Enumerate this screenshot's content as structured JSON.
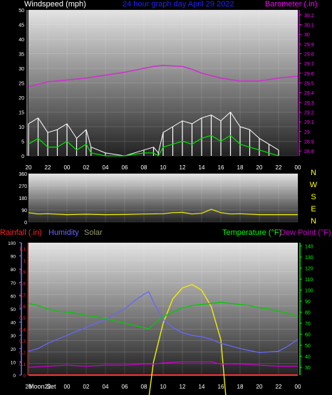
{
  "header": {
    "wind_label": "Windspeed (mph)",
    "date_label": "24 hour graph day   April 29 2022",
    "baro_label": "Barometer (.in)"
  },
  "middle": {
    "dir_letters": [
      "N",
      "W",
      "S",
      "E",
      "N"
    ]
  },
  "bottom": {
    "rain_label": "Rainfall (.in)",
    "humidity_label": "Humidity",
    "solar_label": "Solar",
    "temp_label": "Temperature (°F)",
    "dew_label": "Dew Point (°F)",
    "moon_label": "Moon Set"
  },
  "colors": {
    "wind_label": "#ffffff",
    "date_label": "#2222ff",
    "baro_label": "#ff00ff",
    "baro_line": "#cc33cc",
    "wind_gust": "#ffffff",
    "wind_avg": "#00dd00",
    "direction": "#eeee00",
    "rain": "#ff3333",
    "humidity": "#6666ff",
    "solar": "#eeee00",
    "temp": "#00cc00",
    "dew": "#cc00cc",
    "axis_rain": "#ff2222",
    "axis_hum": "#8080ff",
    "axis_temp": "#00ff00",
    "dir_letters": "#ffff00"
  },
  "chart_data": [
    {
      "type": "line",
      "x_ticks": [
        "20",
        "22",
        "00",
        "02",
        "04",
        "06",
        "08",
        "10",
        "12",
        "14",
        "16",
        "18",
        "20",
        "22",
        "00"
      ],
      "wind_axis": {
        "ticks": [
          "0",
          "5",
          "10",
          "15",
          "20",
          "25",
          "30",
          "35",
          "40",
          "45",
          "50"
        ],
        "ylim": [
          0,
          50
        ]
      },
      "baro_axis": {
        "ticks": [
          "28.8",
          "28.9",
          "29",
          "29.1",
          "29.2",
          "29.3",
          "29.4",
          "29.5",
          "29.6",
          "29.7",
          "29.8",
          "29.9",
          "30",
          "30.1",
          "30.2"
        ],
        "ylim": [
          28.75,
          30.25
        ]
      },
      "series": [
        {
          "key": "barometer",
          "x": [
            0,
            2,
            4,
            6,
            8,
            10,
            12,
            13,
            14,
            16,
            17,
            18,
            20,
            22,
            24,
            26,
            28
          ],
          "values": [
            29.46,
            29.51,
            29.53,
            29.55,
            29.58,
            29.61,
            29.65,
            29.67,
            29.68,
            29.67,
            29.64,
            29.6,
            29.55,
            29.52,
            29.52,
            29.55,
            29.57
          ]
        },
        {
          "key": "wind_gust",
          "x": [
            0,
            1,
            2,
            3,
            4,
            5,
            6,
            6.5,
            8,
            10,
            12,
            13,
            13.5,
            14,
            15,
            16,
            17,
            18,
            19,
            20,
            21,
            22,
            23,
            24,
            25,
            26
          ],
          "values": [
            11,
            13,
            8,
            9,
            11,
            6,
            9,
            3,
            1,
            0,
            2,
            3,
            1,
            8,
            10,
            12,
            11,
            13,
            14,
            12,
            15,
            10,
            9,
            6,
            4,
            2
          ]
        },
        {
          "key": "wind_avg",
          "x": [
            0,
            1,
            2,
            3,
            4,
            5,
            6,
            6.5,
            8,
            10,
            12,
            13,
            13.5,
            14,
            15,
            16,
            17,
            18,
            19,
            20,
            21,
            22,
            23,
            24,
            25,
            26
          ],
          "values": [
            4,
            6,
            3,
            3,
            5,
            2,
            4,
            1,
            0,
            0,
            1,
            1,
            0,
            3,
            4,
            5,
            4,
            6,
            7,
            5,
            7,
            4,
            3,
            2,
            1,
            0
          ]
        }
      ]
    },
    {
      "type": "line",
      "x_ticks": [],
      "dir_axis": {
        "ticks": [
          "0",
          "90",
          "180",
          "270",
          "360"
        ],
        "ylim": [
          0,
          360
        ]
      },
      "series": [
        {
          "key": "direction",
          "x": [
            0,
            1,
            2,
            4,
            6,
            8,
            10,
            12,
            14,
            15,
            16,
            17,
            18,
            19,
            20,
            21,
            22,
            24,
            26,
            28
          ],
          "values": [
            70,
            60,
            62,
            55,
            58,
            55,
            56,
            60,
            62,
            70,
            72,
            60,
            65,
            95,
            70,
            60,
            62,
            55,
            55,
            55
          ]
        }
      ]
    },
    {
      "type": "line",
      "x_ticks": [
        "20",
        "22",
        "00",
        "02",
        "04",
        "06",
        "08",
        "10",
        "12",
        "14",
        "16",
        "18",
        "20",
        "22",
        "00"
      ],
      "rain_axis": {
        "ticks": [
          "0",
          "0.1",
          "0.2",
          "0.3",
          "0.4",
          "0.5",
          "0.6",
          "0.7",
          "0.8",
          "0.9",
          "1",
          "1.1"
        ],
        "ylim": [
          0,
          1.15
        ]
      },
      "humidity_axis": {
        "ticks": [
          "0",
          "10",
          "20",
          "30",
          "40",
          "50",
          "60",
          "70",
          "80",
          "90",
          "100"
        ],
        "ylim": [
          0,
          100
        ]
      },
      "temp_axis": {
        "ticks": [
          "30",
          "40",
          "50",
          "60",
          "70",
          "80",
          "90",
          "100",
          "110",
          "120",
          "130",
          "140"
        ],
        "ylim": [
          23,
          143
        ]
      },
      "series": [
        {
          "key": "rain",
          "x": [
            0,
            28
          ],
          "values": [
            0,
            0
          ]
        },
        {
          "key": "humidity",
          "x": [
            0,
            1,
            2,
            3,
            4,
            5,
            6,
            7,
            8,
            9,
            10,
            11,
            12,
            12.5,
            13,
            14,
            15,
            16,
            17,
            18,
            19,
            20,
            22,
            24,
            26,
            27,
            28
          ],
          "values": [
            18,
            20,
            24,
            27,
            30,
            33,
            36,
            39,
            42,
            46,
            50,
            56,
            61,
            63,
            55,
            42,
            36,
            32,
            30,
            29,
            27,
            24,
            20,
            17,
            18,
            22,
            27
          ]
        },
        {
          "key": "temp",
          "x": [
            0,
            1,
            2,
            3,
            4,
            5,
            6,
            7,
            8,
            9,
            10,
            11,
            12,
            12.5,
            13,
            14,
            15,
            16,
            17,
            18,
            19,
            20,
            21,
            22,
            23,
            24,
            25,
            26,
            27,
            28
          ],
          "values": [
            88,
            86,
            83,
            81,
            80,
            79,
            77,
            76,
            74,
            72,
            70,
            68,
            66,
            65,
            69,
            76,
            80,
            84,
            86,
            87,
            88,
            89,
            88,
            87,
            86,
            84,
            83,
            81,
            79,
            76
          ]
        },
        {
          "key": "dew",
          "x": [
            0,
            2,
            4,
            6,
            8,
            10,
            12,
            13,
            14,
            16,
            18,
            19,
            20,
            22,
            24,
            26,
            28
          ],
          "values": [
            30,
            31,
            32,
            31,
            32,
            32,
            33,
            33,
            34,
            35,
            35,
            35,
            33,
            33,
            32,
            31,
            31
          ]
        },
        {
          "key": "solar",
          "x": [
            0,
            11.5,
            12.5,
            13,
            14,
            15,
            16,
            17,
            18,
            19,
            20,
            20.5,
            21,
            23,
            28
          ],
          "values": [
            0,
            0,
            2,
            35,
            70,
            92,
            102,
            105,
            100,
            85,
            55,
            5,
            3,
            0,
            0
          ]
        }
      ]
    }
  ]
}
